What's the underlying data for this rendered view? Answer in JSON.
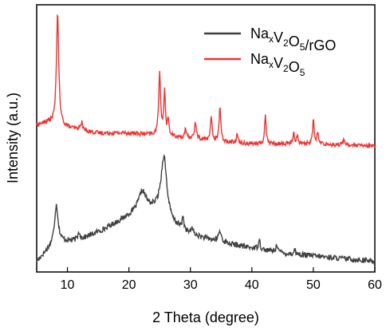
{
  "chart_data": {
    "type": "line",
    "xlabel": "2 Theta (degree)",
    "ylabel": "Intensity (a.u.)",
    "xlim": [
      5,
      60
    ],
    "ylim": [
      0,
      100
    ],
    "x_ticks": [
      10,
      20,
      30,
      40,
      50,
      60
    ],
    "y_ticks_shown": false,
    "legend_position": "top-right",
    "legend": [
      {
        "series": 0,
        "base": "Na",
        "sub1": "x",
        "mid": "V",
        "sub2": "2",
        "mid2": "O",
        "sub3": "5",
        "suffix": "/rGO"
      },
      {
        "series": 1,
        "base": "Na",
        "sub1": "x",
        "mid": "V",
        "sub2": "2",
        "mid2": "O",
        "sub3": "5",
        "suffix": ""
      }
    ],
    "series": [
      {
        "color": "#404040",
        "baseline": [
          [
            5,
            4
          ],
          [
            8,
            11
          ],
          [
            12,
            12
          ],
          [
            16,
            16
          ],
          [
            20,
            21
          ],
          [
            22,
            24
          ],
          [
            25,
            23
          ],
          [
            27,
            18
          ],
          [
            30,
            14
          ],
          [
            35,
            11
          ],
          [
            40,
            9
          ],
          [
            45,
            7
          ],
          [
            50,
            6
          ],
          [
            55,
            5
          ],
          [
            60,
            4
          ]
        ],
        "peaks": [
          [
            8.2,
            14,
            0.35
          ],
          [
            11.9,
            3,
            0.2
          ],
          [
            22.2,
            6,
            0.7
          ],
          [
            25.7,
            22,
            0.55
          ],
          [
            28.8,
            5,
            0.15
          ],
          [
            30.3,
            3,
            0.15
          ],
          [
            34.8,
            4,
            0.3
          ],
          [
            41.2,
            4,
            0.15
          ],
          [
            44.1,
            3,
            0.2
          ],
          [
            47.0,
            2,
            0.15
          ]
        ],
        "noise": 1.0
      },
      {
        "color": "#ee3333",
        "baseline": [
          [
            5,
            55
          ],
          [
            7,
            56
          ],
          [
            10,
            54
          ],
          [
            15,
            52
          ],
          [
            20,
            52
          ],
          [
            25,
            51
          ],
          [
            30,
            50
          ],
          [
            35,
            49
          ],
          [
            40,
            48
          ],
          [
            50,
            48
          ],
          [
            60,
            47
          ]
        ],
        "peaks": [
          [
            8.4,
            42,
            0.22
          ],
          [
            12.3,
            3,
            0.2
          ],
          [
            25.0,
            24,
            0.18
          ],
          [
            25.8,
            17,
            0.15
          ],
          [
            26.4,
            6,
            0.15
          ],
          [
            29.2,
            3,
            0.15
          ],
          [
            30.8,
            6,
            0.18
          ],
          [
            33.4,
            9,
            0.15
          ],
          [
            34.8,
            13,
            0.15
          ],
          [
            37.6,
            3,
            0.15
          ],
          [
            42.2,
            11,
            0.14
          ],
          [
            46.8,
            4,
            0.15
          ],
          [
            47.4,
            3,
            0.15
          ],
          [
            50.0,
            9,
            0.14
          ],
          [
            50.7,
            4,
            0.15
          ],
          [
            55.0,
            2,
            0.2
          ]
        ],
        "noise": 0.8
      }
    ]
  }
}
